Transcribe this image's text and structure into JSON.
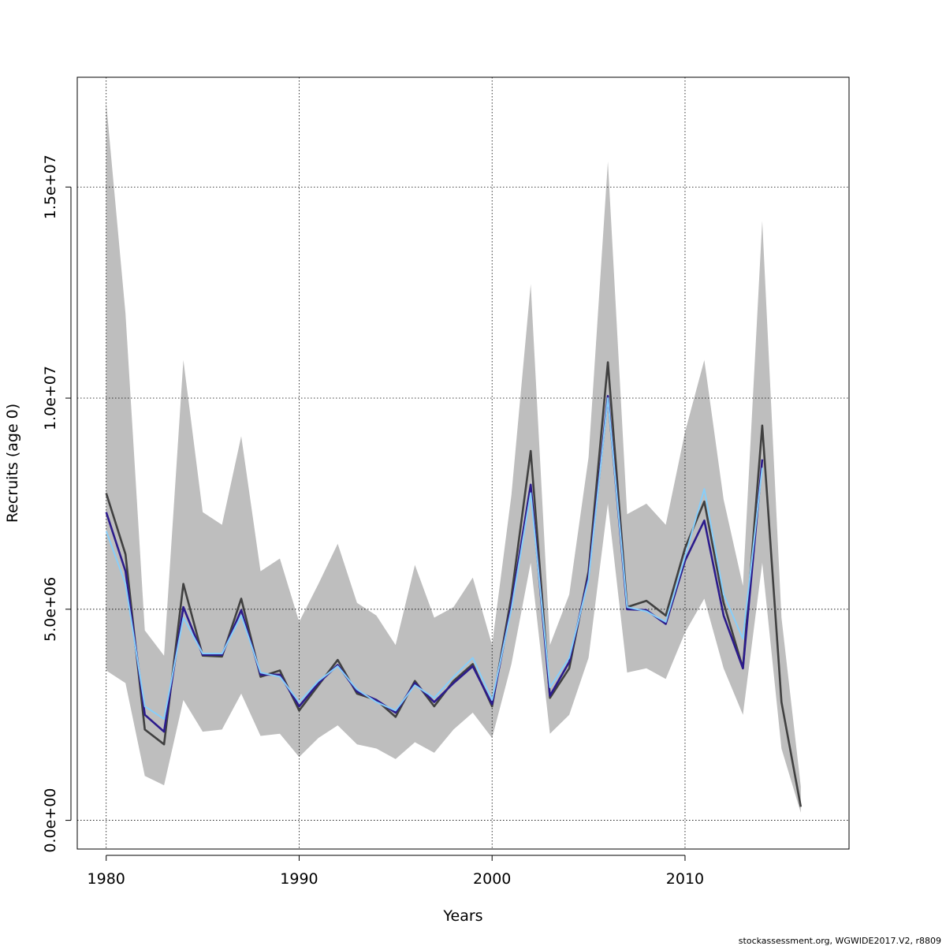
{
  "chart_data": {
    "type": "line",
    "title": "",
    "xlabel": "Years",
    "ylabel": "Recruits (age 0)",
    "xlim": [
      1978.5,
      2018.5
    ],
    "ylim": [
      -680000,
      17600000
    ],
    "x_ticks": [
      1980,
      1990,
      2000,
      2010
    ],
    "x_tick_labels": [
      "1980",
      "1990",
      "2000",
      "2010"
    ],
    "y_ticks": [
      0,
      5000000,
      10000000,
      15000000
    ],
    "y_tick_labels": [
      "0.0e+00",
      "5.0e+06",
      "1.0e+07",
      "1.5e+07"
    ],
    "grid": true,
    "legend": "none",
    "x": [
      1980,
      1981,
      1982,
      1983,
      1984,
      1985,
      1986,
      1987,
      1988,
      1989,
      1990,
      1991,
      1992,
      1993,
      1994,
      1995,
      1996,
      1997,
      1998,
      1999,
      2000,
      2001,
      2002,
      2003,
      2004,
      2005,
      2006,
      2007,
      2008,
      2009,
      2010,
      2011,
      2012,
      2013,
      2014,
      2015,
      2016
    ],
    "band": {
      "color": "#bebebe",
      "upper": [
        17000000,
        12000000,
        4500000,
        3900000,
        10900000,
        7300000,
        7000000,
        9100000,
        5900000,
        6200000,
        4700000,
        5600000,
        6550000,
        5150000,
        4850000,
        4150000,
        6050000,
        4800000,
        5050000,
        5750000,
        4150000,
        7700000,
        12700000,
        4150000,
        5350000,
        8600000,
        15600000,
        7250000,
        7500000,
        7000000,
        9200000,
        10900000,
        7600000,
        5550000,
        14200000,
        4800000,
        800000
      ],
      "lower": [
        3550000,
        3250000,
        1050000,
        830000,
        2850000,
        2100000,
        2150000,
        3000000,
        2000000,
        2050000,
        1500000,
        1950000,
        2250000,
        1800000,
        1700000,
        1450000,
        1850000,
        1600000,
        2150000,
        2550000,
        1950000,
        3700000,
        6100000,
        2050000,
        2500000,
        3850000,
        7500000,
        3500000,
        3600000,
        3350000,
        4450000,
        5250000,
        3600000,
        2500000,
        6100000,
        1700000,
        180000
      ]
    },
    "series": [
      {
        "color": "#404040",
        "values": [
          7750000,
          6300000,
          2150000,
          1800000,
          5600000,
          3900000,
          3880000,
          5250000,
          3400000,
          3550000,
          2600000,
          3200000,
          3800000,
          3000000,
          2850000,
          2450000,
          3300000,
          2700000,
          3300000,
          3700000,
          2700000,
          5300000,
          8750000,
          2900000,
          3600000,
          5900000,
          10850000,
          5050000,
          5200000,
          4850000,
          6450000,
          7550000,
          5150000,
          3600000,
          9350000,
          2800000,
          320000
        ]
      },
      {
        "color": "#2c1b8c",
        "values": [
          7300000,
          5900000,
          2500000,
          2100000,
          5050000,
          3920000,
          3920000,
          4980000,
          3450000,
          3450000,
          2700000,
          3250000,
          3680000,
          3050000,
          2850000,
          2550000,
          3250000,
          2800000,
          3250000,
          3650000,
          2750000,
          5100000,
          7950000,
          2950000,
          3750000,
          5800000,
          10050000,
          5000000,
          4980000,
          4650000,
          6150000,
          7100000,
          4850000,
          3600000,
          8550000,
          null,
          null
        ]
      },
      {
        "color": "#87cefa",
        "values": [
          6850000,
          5600000,
          2700000,
          2400000,
          4800000,
          3950000,
          3950000,
          4850000,
          3500000,
          3400000,
          2800000,
          3300000,
          3650000,
          3100000,
          2800000,
          2600000,
          3200000,
          2900000,
          3400000,
          3850000,
          2850000,
          5000000,
          7750000,
          3150000,
          3850000,
          5700000,
          10000000,
          5050000,
          4950000,
          4700000,
          6250000,
          7850000,
          5350000,
          4300000,
          8350000,
          null,
          null
        ]
      }
    ]
  },
  "footer": {
    "credit": "stockassessment.org, WGWIDE2017.V2, r8809"
  }
}
